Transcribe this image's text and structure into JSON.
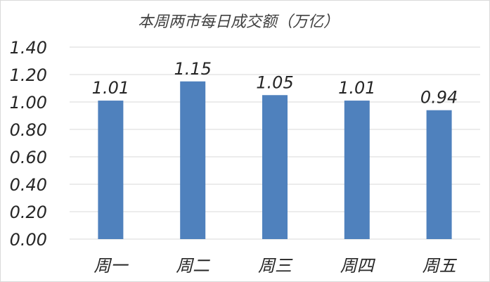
{
  "chart_data": {
    "type": "bar",
    "title": "本周两市每日成交额（万亿）",
    "categories": [
      "周一",
      "周二",
      "周三",
      "周四",
      "周五"
    ],
    "values": [
      1.01,
      1.15,
      1.05,
      1.01,
      0.94
    ],
    "data_labels": [
      "1.01",
      "1.15",
      "1.05",
      "1.01",
      "0.94"
    ],
    "ylim": [
      0,
      1.4
    ],
    "yticks": [
      "0.00",
      "0.20",
      "0.40",
      "0.60",
      "0.80",
      "1.00",
      "1.20",
      "1.40"
    ],
    "grid": true,
    "legend": "none",
    "bar_color": "#4f81bd",
    "grid_color": "#d9d9d9"
  }
}
